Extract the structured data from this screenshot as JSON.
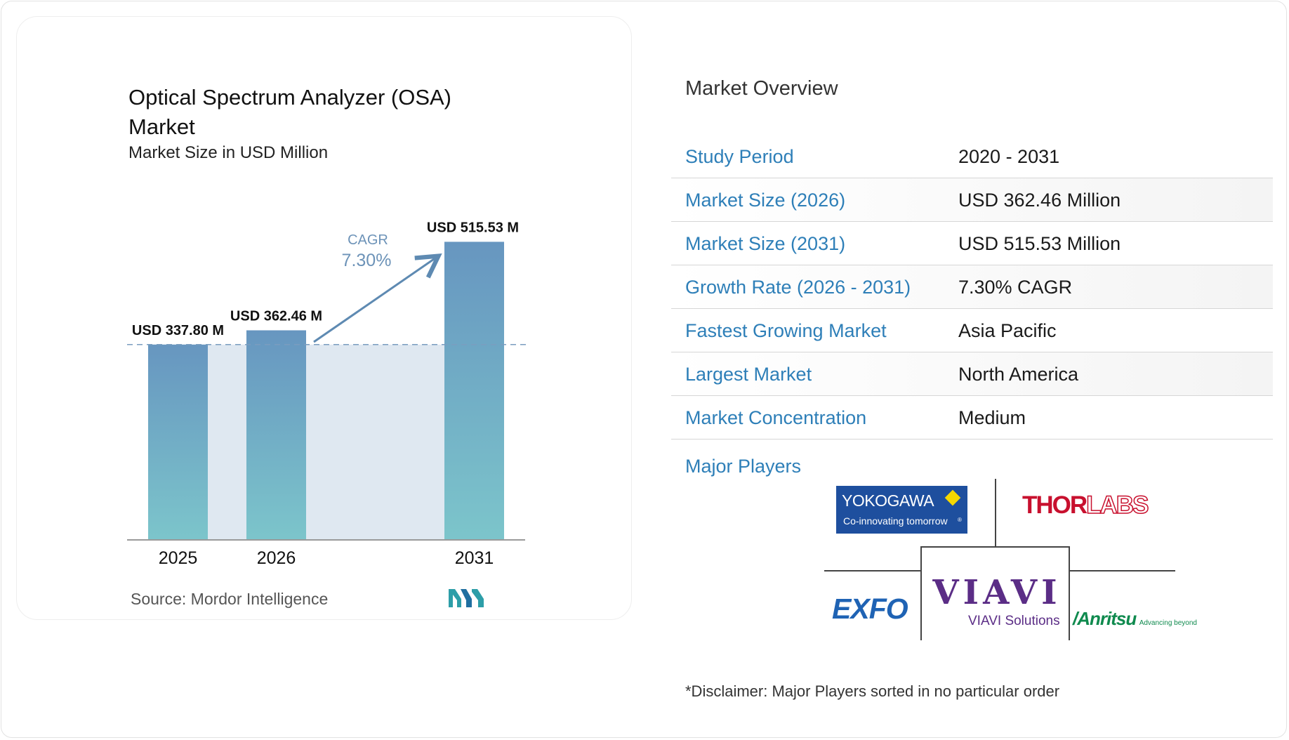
{
  "chart_data": {
    "type": "bar",
    "title": "Optical Spectrum Analyzer (OSA) Market",
    "subtitle": "Market Size in USD Million",
    "categories": [
      "2025",
      "2026",
      "2031"
    ],
    "values": [
      337.8,
      362.46,
      515.53
    ],
    "value_labels": [
      "USD 337.80 M",
      "USD 362.46 M",
      "USD 515.53 M"
    ],
    "cagr_label": "CAGR",
    "cagr_value": "7.30%",
    "colors": {
      "bar_top": "#6796c0",
      "bar_bottom": "#7cc5cb",
      "band": "#dfe8f1",
      "arrow": "#5e8ab2",
      "cagr_text": "#6d93b8"
    }
  },
  "source": "Source:  Mordor Intelligence",
  "brand_icon": "mordor-intelligence-logo",
  "overview": {
    "title": "Market Overview",
    "rows": [
      {
        "label": "Study Period",
        "value": "2020 - 2031"
      },
      {
        "label": "Market Size (2026)",
        "value": "USD 362.46 Million"
      },
      {
        "label": "Market Size (2031)",
        "value": "USD 515.53 Million"
      },
      {
        "label": "Growth Rate (2026 - 2031)",
        "value": "7.30% CAGR"
      },
      {
        "label": "Fastest Growing Market",
        "value": "Asia Pacific"
      },
      {
        "label": "Largest Market",
        "value": "North America"
      },
      {
        "label": "Market Concentration",
        "value": "Medium"
      }
    ]
  },
  "players": {
    "title": "Major Players",
    "logos": {
      "yokogawa": {
        "name": "YOKOGAWA",
        "tagline": "Co-innovating tomorrow",
        "trademark": "®"
      },
      "thorlabs": {
        "name_a": "THOR",
        "name_b": "LABS"
      },
      "exfo": {
        "name": "EXFO"
      },
      "viavi": {
        "name": "VIAVI",
        "sub": "VIAVI Solutions"
      },
      "anritsu": {
        "name": "/Anritsu",
        "tagline": "Advancing beyond"
      }
    }
  },
  "disclaimer": "*Disclaimer: Major Players sorted in no particular order"
}
